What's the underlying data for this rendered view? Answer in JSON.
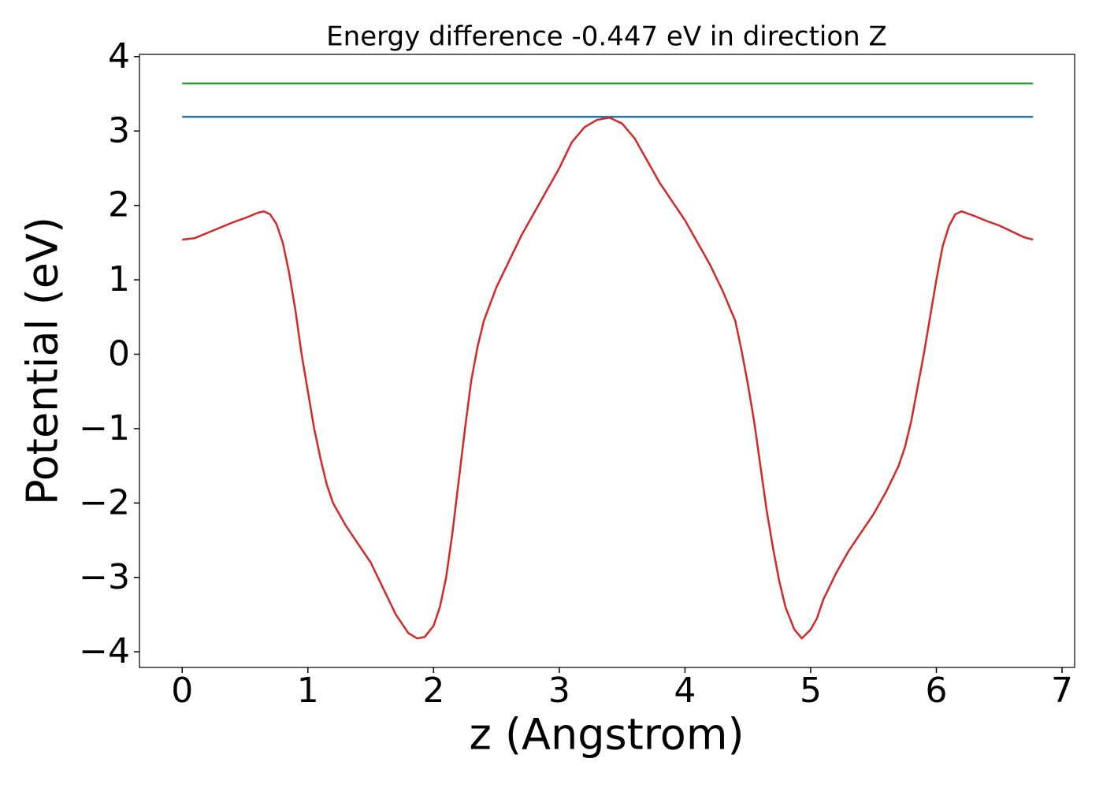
{
  "chart_data": {
    "type": "line",
    "title": "Energy difference -0.447 eV in direction Z",
    "xlabel": "z (Angstrom)",
    "ylabel": "Potential (eV)",
    "xlim": [
      -0.34,
      7.1
    ],
    "ylim": [
      -4.21,
      4.03
    ],
    "xticks": [
      0,
      1,
      2,
      3,
      4,
      5,
      6,
      7
    ],
    "yticks": [
      {
        "value": -4,
        "label": "−4"
      },
      {
        "value": -3,
        "label": "−3"
      },
      {
        "value": -2,
        "label": "−2"
      },
      {
        "value": -1,
        "label": "−1"
      },
      0,
      1,
      2,
      3,
      4
    ],
    "grid": false,
    "series": [
      {
        "color": "#2ca02c",
        "x": [
          0,
          6.77
        ],
        "values": [
          3.64,
          3.64
        ]
      },
      {
        "color": "#1f77b4",
        "x": [
          0,
          6.77
        ],
        "values": [
          3.19,
          3.19
        ]
      },
      {
        "color": "#d62728",
        "x": [
          0,
          0.1,
          0.2,
          0.3,
          0.4,
          0.5,
          0.6,
          0.65,
          0.7,
          0.75,
          0.8,
          0.85,
          0.9,
          0.95,
          1.0,
          1.05,
          1.1,
          1.15,
          1.2,
          1.3,
          1.4,
          1.5,
          1.6,
          1.7,
          1.8,
          1.87,
          1.93,
          2.0,
          2.05,
          2.1,
          2.15,
          2.2,
          2.25,
          2.3,
          2.35,
          2.4,
          2.5,
          2.6,
          2.7,
          2.8,
          2.9,
          3.0,
          3.1,
          3.2,
          3.3,
          3.4,
          3.5,
          3.6,
          3.7,
          3.8,
          3.9,
          4.0,
          4.1,
          4.2,
          4.3,
          4.4,
          4.45,
          4.5,
          4.55,
          4.6,
          4.65,
          4.7,
          4.75,
          4.8,
          4.87,
          4.93,
          5.0,
          5.05,
          5.1,
          5.2,
          5.3,
          5.4,
          5.5,
          5.6,
          5.7,
          5.75,
          5.8,
          5.85,
          5.9,
          5.95,
          6.0,
          6.05,
          6.1,
          6.15,
          6.2,
          6.3,
          6.4,
          6.5,
          6.6,
          6.7,
          6.77
        ],
        "values": [
          1.54,
          1.56,
          1.63,
          1.7,
          1.77,
          1.83,
          1.9,
          1.92,
          1.88,
          1.75,
          1.5,
          1.1,
          0.6,
          0.0,
          -0.5,
          -1.0,
          -1.4,
          -1.75,
          -2.0,
          -2.3,
          -2.55,
          -2.8,
          -3.15,
          -3.5,
          -3.75,
          -3.82,
          -3.8,
          -3.65,
          -3.4,
          -3.0,
          -2.4,
          -1.7,
          -1.0,
          -0.35,
          0.1,
          0.45,
          0.9,
          1.25,
          1.6,
          1.9,
          2.2,
          2.5,
          2.85,
          3.05,
          3.15,
          3.18,
          3.1,
          2.9,
          2.6,
          2.3,
          2.05,
          1.8,
          1.5,
          1.2,
          0.85,
          0.45,
          0.05,
          -0.4,
          -0.9,
          -1.5,
          -2.1,
          -2.6,
          -3.05,
          -3.4,
          -3.7,
          -3.82,
          -3.7,
          -3.55,
          -3.3,
          -2.95,
          -2.65,
          -2.4,
          -2.15,
          -1.85,
          -1.5,
          -1.25,
          -0.9,
          -0.45,
          0.0,
          0.5,
          1.0,
          1.45,
          1.72,
          1.88,
          1.92,
          1.86,
          1.79,
          1.73,
          1.65,
          1.57,
          1.54
        ]
      }
    ]
  }
}
